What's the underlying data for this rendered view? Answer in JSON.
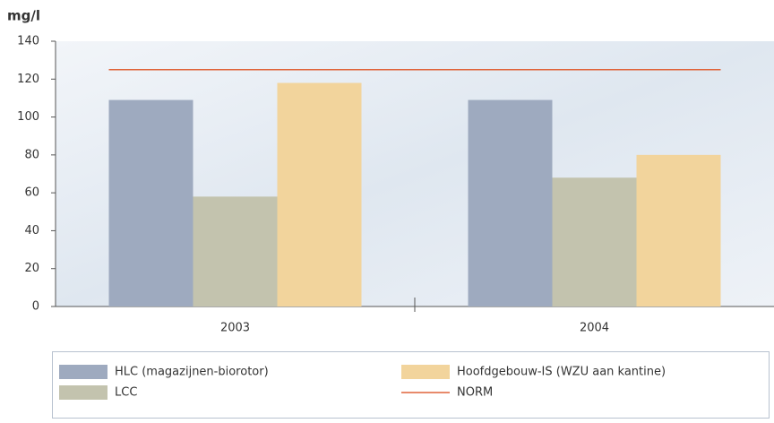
{
  "chart_data": {
    "type": "bar",
    "y_label": "mg/l",
    "categories": [
      "2003",
      "2004"
    ],
    "series": [
      {
        "name": "HLC (magazijnen-biorotor)",
        "color": "#9eaabf",
        "values": [
          109,
          109
        ]
      },
      {
        "name": "LCC",
        "color": "#c3c3ae",
        "values": [
          58,
          68
        ]
      },
      {
        "name": "Hoofdgebouw-IS (WZU aan kantine)",
        "color": "#f2d49c",
        "values": [
          118,
          80
        ]
      },
      {
        "name": "NORM",
        "color": "#e0643a",
        "type": "line",
        "values": [
          125,
          125
        ]
      }
    ],
    "ylim": [
      0,
      140
    ],
    "yticks": [
      0,
      20,
      40,
      60,
      80,
      100,
      120,
      140
    ]
  }
}
